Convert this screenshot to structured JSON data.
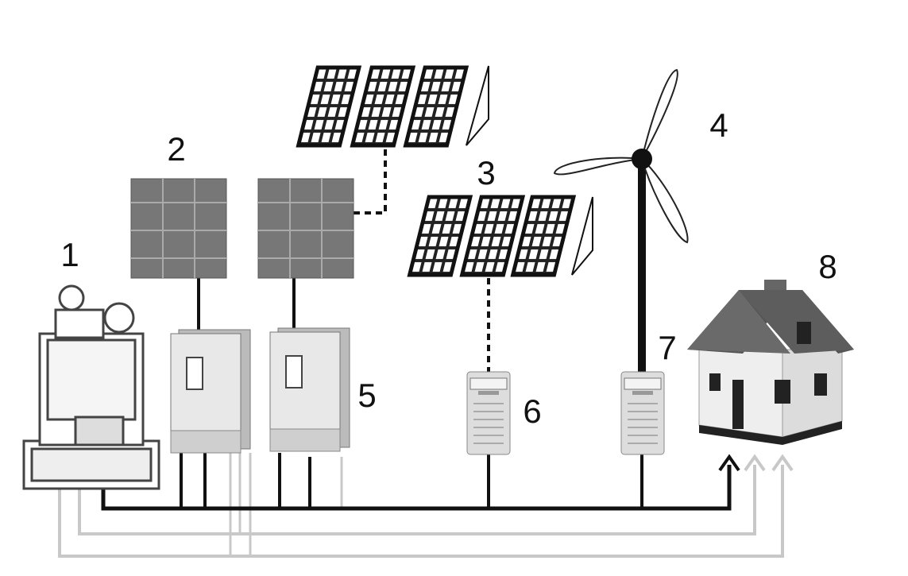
{
  "nodes": [
    {
      "label": "1"
    },
    {
      "label": "2"
    },
    {
      "label": "3"
    },
    {
      "label": "4"
    },
    {
      "label": "5"
    },
    {
      "label": "6"
    },
    {
      "label": "7"
    },
    {
      "label": "8"
    }
  ]
}
